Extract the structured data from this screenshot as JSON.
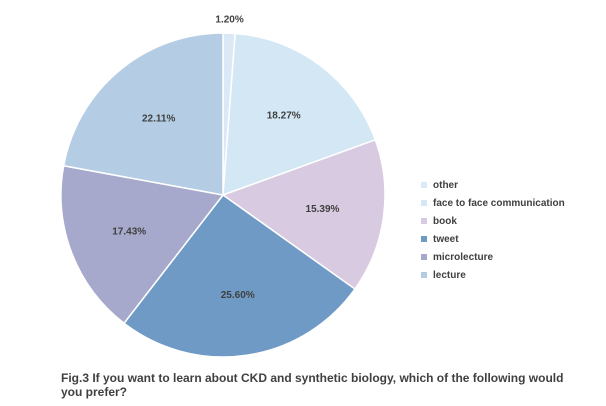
{
  "chart_data": {
    "type": "pie",
    "categories": [
      "other",
      "face to face communication",
      "book",
      "tweet",
      "microlecture",
      "lecture"
    ],
    "values": [
      1.2,
      18.27,
      15.39,
      25.6,
      17.43,
      22.11
    ],
    "data_labels": [
      "1.20%",
      "18.27%",
      "15.39%",
      "25.60%",
      "17.43%",
      "22.11%"
    ],
    "colors": [
      "#dbe8f5",
      "#d3e7f4",
      "#d8cae0",
      "#6f9ac5",
      "#a6a9cc",
      "#b4cde5"
    ],
    "start_angle_deg": 0,
    "direction": "clockwise",
    "legend_position": "right",
    "caption": "Fig.3 If you want to learn about CKD and synthetic biology, which of the following would you prefer?"
  }
}
